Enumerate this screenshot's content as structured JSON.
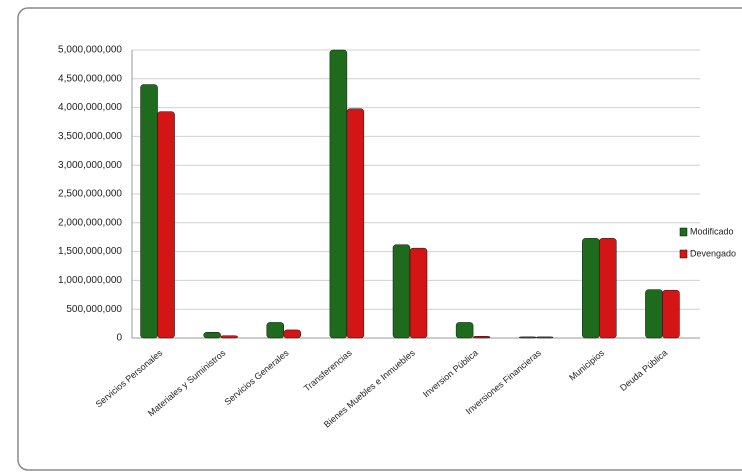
{
  "chart_data": {
    "type": "bar",
    "categories": [
      "Servicios Personales",
      "Materiales y Suministros",
      "Servicios Generales",
      "Transferencias",
      "Bienes Muebles e Inmuebles",
      "Inversion Pública",
      "Inversiones Financieras",
      "Municipios",
      "Deuda Pública"
    ],
    "series": [
      {
        "name": "Modificado",
        "color": "#1e6b1e",
        "values": [
          4400000000,
          100000000,
          270000000,
          5000000000,
          1620000000,
          270000000,
          20000000,
          1730000000,
          840000000
        ]
      },
      {
        "name": "Devengado",
        "color": "#d41515",
        "values": [
          3930000000,
          40000000,
          140000000,
          3980000000,
          1560000000,
          30000000,
          20000000,
          1730000000,
          830000000
        ]
      }
    ],
    "ylim": [
      0,
      5000000000
    ],
    "yticks": [
      0,
      {
        "value": 500000000,
        "label": "500,000,000"
      },
      {
        "value": 1000000000,
        "label": "1,000,000,000"
      },
      {
        "value": 1500000000,
        "label": "1,500,000,000"
      },
      {
        "value": 2000000000,
        "label": "2,000,000,000"
      },
      {
        "value": 2500000000,
        "label": "2,500,000,000"
      },
      {
        "value": 3000000000,
        "label": "3,000,000,000"
      },
      {
        "value": 3500000000,
        "label": "3,500,000,000"
      },
      {
        "value": 4000000000,
        "label": "4,000,000,000"
      },
      {
        "value": 4500000000,
        "label": "4,500,000,000"
      },
      {
        "value": 5000000000,
        "label": "5,000,000,000"
      }
    ],
    "grid": true,
    "legend": "right"
  }
}
